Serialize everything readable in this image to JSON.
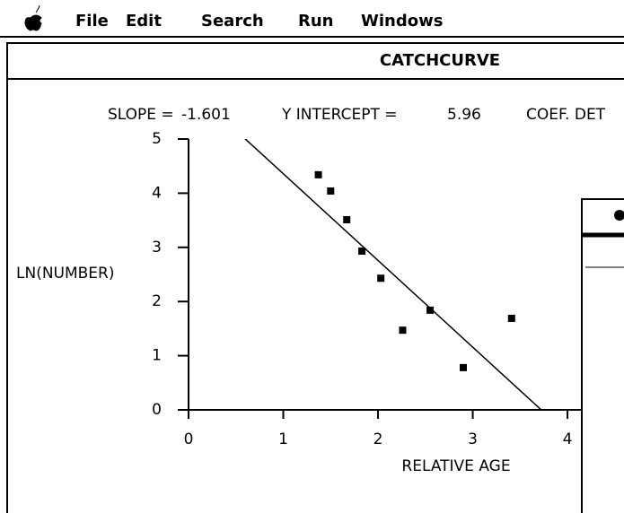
{
  "menu": [
    "File",
    "Edit",
    "Search",
    "Run",
    "Windows"
  ],
  "window": {
    "title": "CATCHCURVE"
  },
  "chart_data": {
    "type": "scatter",
    "slope_label": "SLOPE =",
    "slope": -1.601,
    "intercept_label": "Y INTERCEPT =",
    "intercept": 5.96,
    "coef_label": "COEF. DET",
    "xlabel": "RELATIVE AGE",
    "ylabel": "LN(NUMBER)",
    "x": [
      1.37,
      1.5,
      1.67,
      1.83,
      2.03,
      2.26,
      2.55,
      2.9,
      3.41
    ],
    "values": [
      4.34,
      4.04,
      3.51,
      2.93,
      2.43,
      1.47,
      1.84,
      0.78,
      1.69
    ],
    "color": "#000000",
    "xlim": [
      0,
      4.17
    ],
    "xticks": [
      0,
      1,
      2,
      3,
      4
    ],
    "ylim": [
      0,
      5
    ],
    "yticks": [
      0,
      1,
      2,
      3,
      4,
      5
    ]
  }
}
